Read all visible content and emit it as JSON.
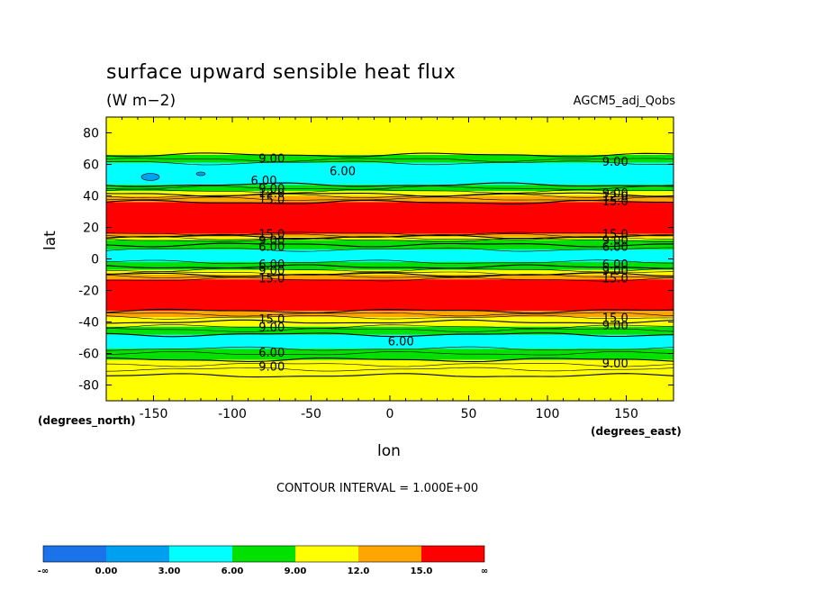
{
  "chart_data": {
    "type": "heatmap",
    "title": "surface upward sensible heat flux",
    "subtitle": "(W m−2)",
    "model_label": "AGCM5_adj_Qobs",
    "xlabel": "lon",
    "ylabel": "lat",
    "x_unit_label": "(degrees_east)",
    "y_unit_label": "(degrees_north)",
    "xlim": [
      -180,
      180
    ],
    "ylim": [
      -90,
      90
    ],
    "xticks": [
      -150,
      -100,
      -50,
      0,
      50,
      100,
      150
    ],
    "yticks": [
      80,
      60,
      40,
      20,
      0,
      -20,
      -40,
      -60,
      -80
    ],
    "contour_interval_text": "CONTOUR INTERVAL = 1.000E+00",
    "levels": [
      "-∞",
      "0.00",
      "3.00",
      "6.00",
      "9.00",
      "12.0",
      "15.0",
      "∞"
    ],
    "level_colors": [
      "#1a73e8",
      "#00a0f0",
      "#00ffff",
      "#00e100",
      "#ffff00",
      "#ffa500",
      "#ff0000"
    ],
    "contour_labels": [
      {
        "text": "9.00",
        "lon": -75,
        "lat": 64
      },
      {
        "text": "6.00",
        "lon": -30,
        "lat": 56
      },
      {
        "text": "6.00",
        "lon": -80,
        "lat": 50
      },
      {
        "text": "9.00",
        "lon": -75,
        "lat": 45
      },
      {
        "text": "12.0",
        "lon": -75,
        "lat": 42
      },
      {
        "text": "15.0",
        "lon": -75,
        "lat": 38
      },
      {
        "text": "9.00",
        "lon": 143,
        "lat": 62
      },
      {
        "text": "9.00",
        "lon": 143,
        "lat": 42
      },
      {
        "text": "12.0",
        "lon": 143,
        "lat": 40
      },
      {
        "text": "15.0",
        "lon": 143,
        "lat": 37
      },
      {
        "text": "15.0",
        "lon": -75,
        "lat": 16
      },
      {
        "text": "9.00",
        "lon": -75,
        "lat": 12
      },
      {
        "text": "6.00",
        "lon": -75,
        "lat": 8
      },
      {
        "text": "6.00",
        "lon": -75,
        "lat": -3
      },
      {
        "text": "9.00",
        "lon": -75,
        "lat": -7
      },
      {
        "text": "15.0",
        "lon": -75,
        "lat": -12
      },
      {
        "text": "15.0",
        "lon": 143,
        "lat": 16
      },
      {
        "text": "9.00",
        "lon": 143,
        "lat": 12
      },
      {
        "text": "6.00",
        "lon": 143,
        "lat": 8
      },
      {
        "text": "6.00",
        "lon": 143,
        "lat": -3
      },
      {
        "text": "9.00",
        "lon": 143,
        "lat": -7
      },
      {
        "text": "15.0",
        "lon": 143,
        "lat": -12
      },
      {
        "text": "15.0",
        "lon": -75,
        "lat": -38
      },
      {
        "text": "9.00",
        "lon": -75,
        "lat": -43
      },
      {
        "text": "6.00",
        "lon": 7,
        "lat": -52
      },
      {
        "text": "6.00",
        "lon": -75,
        "lat": -59
      },
      {
        "text": "9.00",
        "lon": -75,
        "lat": -68
      },
      {
        "text": "15.0",
        "lon": 143,
        "lat": -37
      },
      {
        "text": "9.00",
        "lon": 143,
        "lat": -42
      },
      {
        "text": "9.00",
        "lon": 143,
        "lat": -66
      }
    ]
  }
}
